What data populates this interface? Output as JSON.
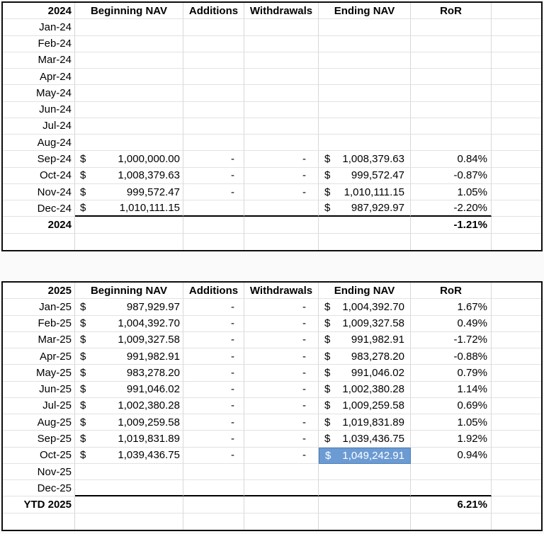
{
  "colors": {
    "highlight_fill": "#6c9bd3",
    "highlight_text": "#ffffff",
    "grid_line": "#d8d8d8",
    "table_border": "#0d0d0d"
  },
  "tables": {
    "t2024": {
      "headers": {
        "year": "2024",
        "beginning": "Beginning NAV",
        "additions": "Additions",
        "withdrawals": "Withdrawals",
        "ending": "Ending NAV",
        "ror": "RoR"
      },
      "rows": [
        {
          "month": "Jan-24",
          "beg_cur": "",
          "beg": "",
          "add": "",
          "wd": "",
          "end_cur": "",
          "end": "",
          "ror": ""
        },
        {
          "month": "Feb-24",
          "beg_cur": "",
          "beg": "",
          "add": "",
          "wd": "",
          "end_cur": "",
          "end": "",
          "ror": ""
        },
        {
          "month": "Mar-24",
          "beg_cur": "",
          "beg": "",
          "add": "",
          "wd": "",
          "end_cur": "",
          "end": "",
          "ror": ""
        },
        {
          "month": "Apr-24",
          "beg_cur": "",
          "beg": "",
          "add": "",
          "wd": "",
          "end_cur": "",
          "end": "",
          "ror": ""
        },
        {
          "month": "May-24",
          "beg_cur": "",
          "beg": "",
          "add": "",
          "wd": "",
          "end_cur": "",
          "end": "",
          "ror": ""
        },
        {
          "month": "Jun-24",
          "beg_cur": "",
          "beg": "",
          "add": "",
          "wd": "",
          "end_cur": "",
          "end": "",
          "ror": ""
        },
        {
          "month": "Jul-24",
          "beg_cur": "",
          "beg": "",
          "add": "",
          "wd": "",
          "end_cur": "",
          "end": "",
          "ror": ""
        },
        {
          "month": "Aug-24",
          "beg_cur": "",
          "beg": "",
          "add": "",
          "wd": "",
          "end_cur": "",
          "end": "",
          "ror": ""
        },
        {
          "month": "Sep-24",
          "beg_cur": "$",
          "beg": "1,000,000.00",
          "add": "-",
          "wd": "-",
          "end_cur": "$",
          "end": "1,008,379.63",
          "ror": "0.84%"
        },
        {
          "month": "Oct-24",
          "beg_cur": "$",
          "beg": "1,008,379.63",
          "add": "-",
          "wd": "-",
          "end_cur": "$",
          "end": "999,572.47",
          "ror": "-0.87%"
        },
        {
          "month": "Nov-24",
          "beg_cur": "$",
          "beg": "999,572.47",
          "add": "-",
          "wd": "-",
          "end_cur": "$",
          "end": "1,010,111.15",
          "ror": "1.05%"
        },
        {
          "month": "Dec-24",
          "beg_cur": "$",
          "beg": "1,010,111.15",
          "add": "",
          "wd": "",
          "end_cur": "$",
          "end": "987,929.97",
          "ror": "-2.20%",
          "underline": true
        }
      ],
      "total": {
        "label": "2024",
        "ror": "-1.21%"
      }
    },
    "t2025": {
      "headers": {
        "year": "2025",
        "beginning": "Beginning NAV",
        "additions": "Additions",
        "withdrawals": "Withdrawals",
        "ending": "Ending NAV",
        "ror": "RoR"
      },
      "rows": [
        {
          "month": "Jan-25",
          "beg_cur": "$",
          "beg": "987,929.97",
          "add": "-",
          "wd": "-",
          "end_cur": "$",
          "end": "1,004,392.70",
          "ror": "1.67%"
        },
        {
          "month": "Feb-25",
          "beg_cur": "$",
          "beg": "1,004,392.70",
          "add": "-",
          "wd": "-",
          "end_cur": "$",
          "end": "1,009,327.58",
          "ror": "0.49%"
        },
        {
          "month": "Mar-25",
          "beg_cur": "$",
          "beg": "1,009,327.58",
          "add": "-",
          "wd": "-",
          "end_cur": "$",
          "end": "991,982.91",
          "ror": "-1.72%"
        },
        {
          "month": "Apr-25",
          "beg_cur": "$",
          "beg": "991,982.91",
          "add": "-",
          "wd": "-",
          "end_cur": "$",
          "end": "983,278.20",
          "ror": "-0.88%"
        },
        {
          "month": "May-25",
          "beg_cur": "$",
          "beg": "983,278.20",
          "add": "-",
          "wd": "-",
          "end_cur": "$",
          "end": "991,046.02",
          "ror": "0.79%"
        },
        {
          "month": "Jun-25",
          "beg_cur": "$",
          "beg": "991,046.02",
          "add": "-",
          "wd": "-",
          "end_cur": "$",
          "end": "1,002,380.28",
          "ror": "1.14%"
        },
        {
          "month": "Jul-25",
          "beg_cur": "$",
          "beg": "1,002,380.28",
          "add": "-",
          "wd": "-",
          "end_cur": "$",
          "end": "1,009,259.58",
          "ror": "0.69%"
        },
        {
          "month": "Aug-25",
          "beg_cur": "$",
          "beg": "1,009,259.58",
          "add": "-",
          "wd": "-",
          "end_cur": "$",
          "end": "1,019,831.89",
          "ror": "1.05%"
        },
        {
          "month": "Sep-25",
          "beg_cur": "$",
          "beg": "1,019,831.89",
          "add": "-",
          "wd": "-",
          "end_cur": "$",
          "end": "1,039,436.75",
          "ror": "1.92%"
        },
        {
          "month": "Oct-25",
          "beg_cur": "$",
          "beg": "1,039,436.75",
          "add": "-",
          "wd": "-",
          "end_cur": "$",
          "end": "1,049,242.91",
          "ror": "0.94%",
          "end_highlight": true
        },
        {
          "month": "Nov-25",
          "beg_cur": "",
          "beg": "",
          "add": "",
          "wd": "",
          "end_cur": "",
          "end": "",
          "ror": ""
        },
        {
          "month": "Dec-25",
          "beg_cur": "",
          "beg": "",
          "add": "",
          "wd": "",
          "end_cur": "",
          "end": "",
          "ror": "",
          "underline": true
        }
      ],
      "total": {
        "label": "YTD 2025",
        "ror": "6.21%"
      }
    }
  }
}
